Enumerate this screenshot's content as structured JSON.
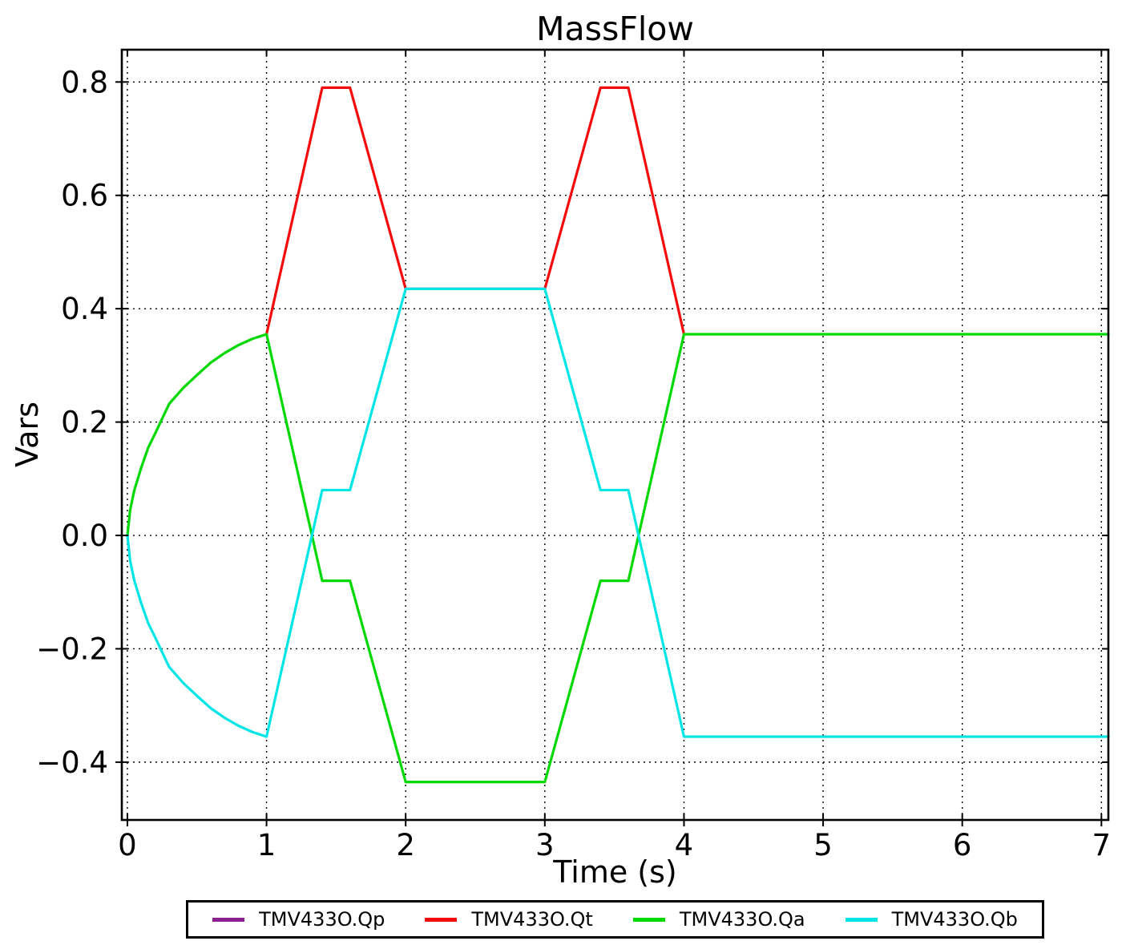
{
  "chart_data": {
    "type": "line",
    "title": "MassFlow",
    "xlabel": "Time (s)",
    "ylabel": "Vars",
    "grid": true,
    "grid_style": "dotted",
    "legend_position": "bottom",
    "xlim": [
      -0.04,
      7.05
    ],
    "ylim": [
      -0.502,
      0.857
    ],
    "x_ticks": [
      0,
      1,
      2,
      3,
      4,
      5,
      6,
      7
    ],
    "x_tick_labels": [
      "0",
      "1",
      "2",
      "3",
      "4",
      "5",
      "6",
      "7"
    ],
    "y_ticks": [
      -0.4,
      -0.2,
      0.0,
      0.2,
      0.4,
      0.6,
      0.8
    ],
    "y_tick_labels": [
      "−0.4",
      "−0.2",
      "0.0",
      "0.2",
      "0.4",
      "0.6",
      "0.8"
    ],
    "series": [
      {
        "name": "TMV433O.Qp",
        "color": "#8b2190",
        "points": []
      },
      {
        "name": "TMV433O.Qt",
        "color": "#f40b0b",
        "points": [
          [
            1,
            0.355
          ],
          [
            1.4,
            0.79
          ],
          [
            1.6,
            0.79
          ],
          [
            2,
            0.435
          ],
          [
            3,
            0.435
          ],
          [
            3.4,
            0.79
          ],
          [
            3.6,
            0.79
          ],
          [
            4,
            0.355
          ]
        ]
      },
      {
        "name": "TMV433O.Qa",
        "color": "#00d900",
        "points": [
          [
            0,
            0
          ],
          [
            0.02,
            0.045
          ],
          [
            0.05,
            0.08
          ],
          [
            0.1,
            0.12
          ],
          [
            0.15,
            0.155
          ],
          [
            0.2,
            0.18
          ],
          [
            0.3,
            0.232
          ],
          [
            0.4,
            0.26
          ],
          [
            0.5,
            0.283
          ],
          [
            0.6,
            0.305
          ],
          [
            0.7,
            0.322
          ],
          [
            0.8,
            0.336
          ],
          [
            0.9,
            0.347
          ],
          [
            1,
            0.355
          ],
          [
            1.4,
            -0.08
          ],
          [
            1.6,
            -0.08
          ],
          [
            2,
            -0.435
          ],
          [
            3,
            -0.435
          ],
          [
            3.4,
            -0.08
          ],
          [
            3.6,
            -0.08
          ],
          [
            4,
            0.355
          ],
          [
            7.05,
            0.355
          ]
        ]
      },
      {
        "name": "TMV433O.Qb",
        "color": "#00e6e6",
        "points": [
          [
            0,
            0
          ],
          [
            0.02,
            -0.045
          ],
          [
            0.05,
            -0.08
          ],
          [
            0.1,
            -0.12
          ],
          [
            0.15,
            -0.155
          ],
          [
            0.2,
            -0.18
          ],
          [
            0.3,
            -0.232
          ],
          [
            0.4,
            -0.26
          ],
          [
            0.5,
            -0.283
          ],
          [
            0.6,
            -0.305
          ],
          [
            0.7,
            -0.322
          ],
          [
            0.8,
            -0.336
          ],
          [
            0.9,
            -0.347
          ],
          [
            1,
            -0.355
          ],
          [
            1.4,
            0.08
          ],
          [
            1.6,
            0.08
          ],
          [
            2,
            0.435
          ],
          [
            3,
            0.435
          ],
          [
            3.4,
            0.08
          ],
          [
            3.6,
            0.08
          ],
          [
            4,
            -0.355
          ],
          [
            7.05,
            -0.355
          ]
        ]
      }
    ]
  }
}
